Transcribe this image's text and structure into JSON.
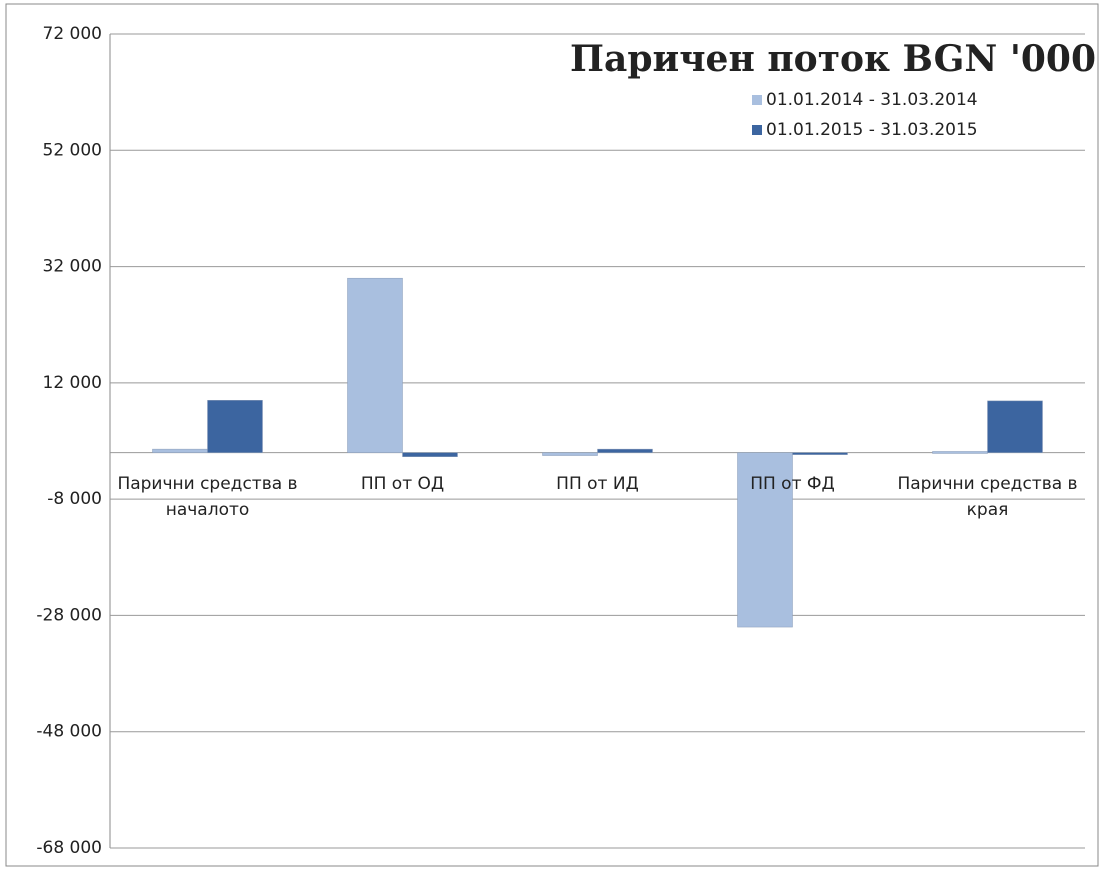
{
  "chart_data": {
    "type": "bar",
    "title": "Паричен поток  BGN '000",
    "categories": [
      "Парични средства в началото",
      "ПП от ОД",
      "ПП от ИД",
      "ПП от ФД",
      "Парични средства в края"
    ],
    "series": [
      {
        "name": "01.01.2014 - 31.03.2014",
        "color": "#a9bfdf",
        "values": [
          600,
          30000,
          -500,
          -30000,
          200
        ]
      },
      {
        "name": "01.01.2015 - 31.03.2015",
        "color": "#3c65a0",
        "values": [
          9000,
          -700,
          600,
          0,
          8900
        ]
      }
    ],
    "ylim": [
      -68000,
      72000
    ],
    "yticks": [
      {
        "value": -68000,
        "label": "-68 000"
      },
      {
        "value": -48000,
        "label": "-48 000"
      },
      {
        "value": -28000,
        "label": "-28 000"
      },
      {
        "value": -8000,
        "label": "-8 000"
      },
      {
        "value": 12000,
        "label": "12 000"
      },
      {
        "value": 32000,
        "label": "32 000"
      },
      {
        "value": 52000,
        "label": "52 000"
      },
      {
        "value": 72000,
        "label": "72 000"
      }
    ],
    "grid": true,
    "legend": "top-right"
  }
}
